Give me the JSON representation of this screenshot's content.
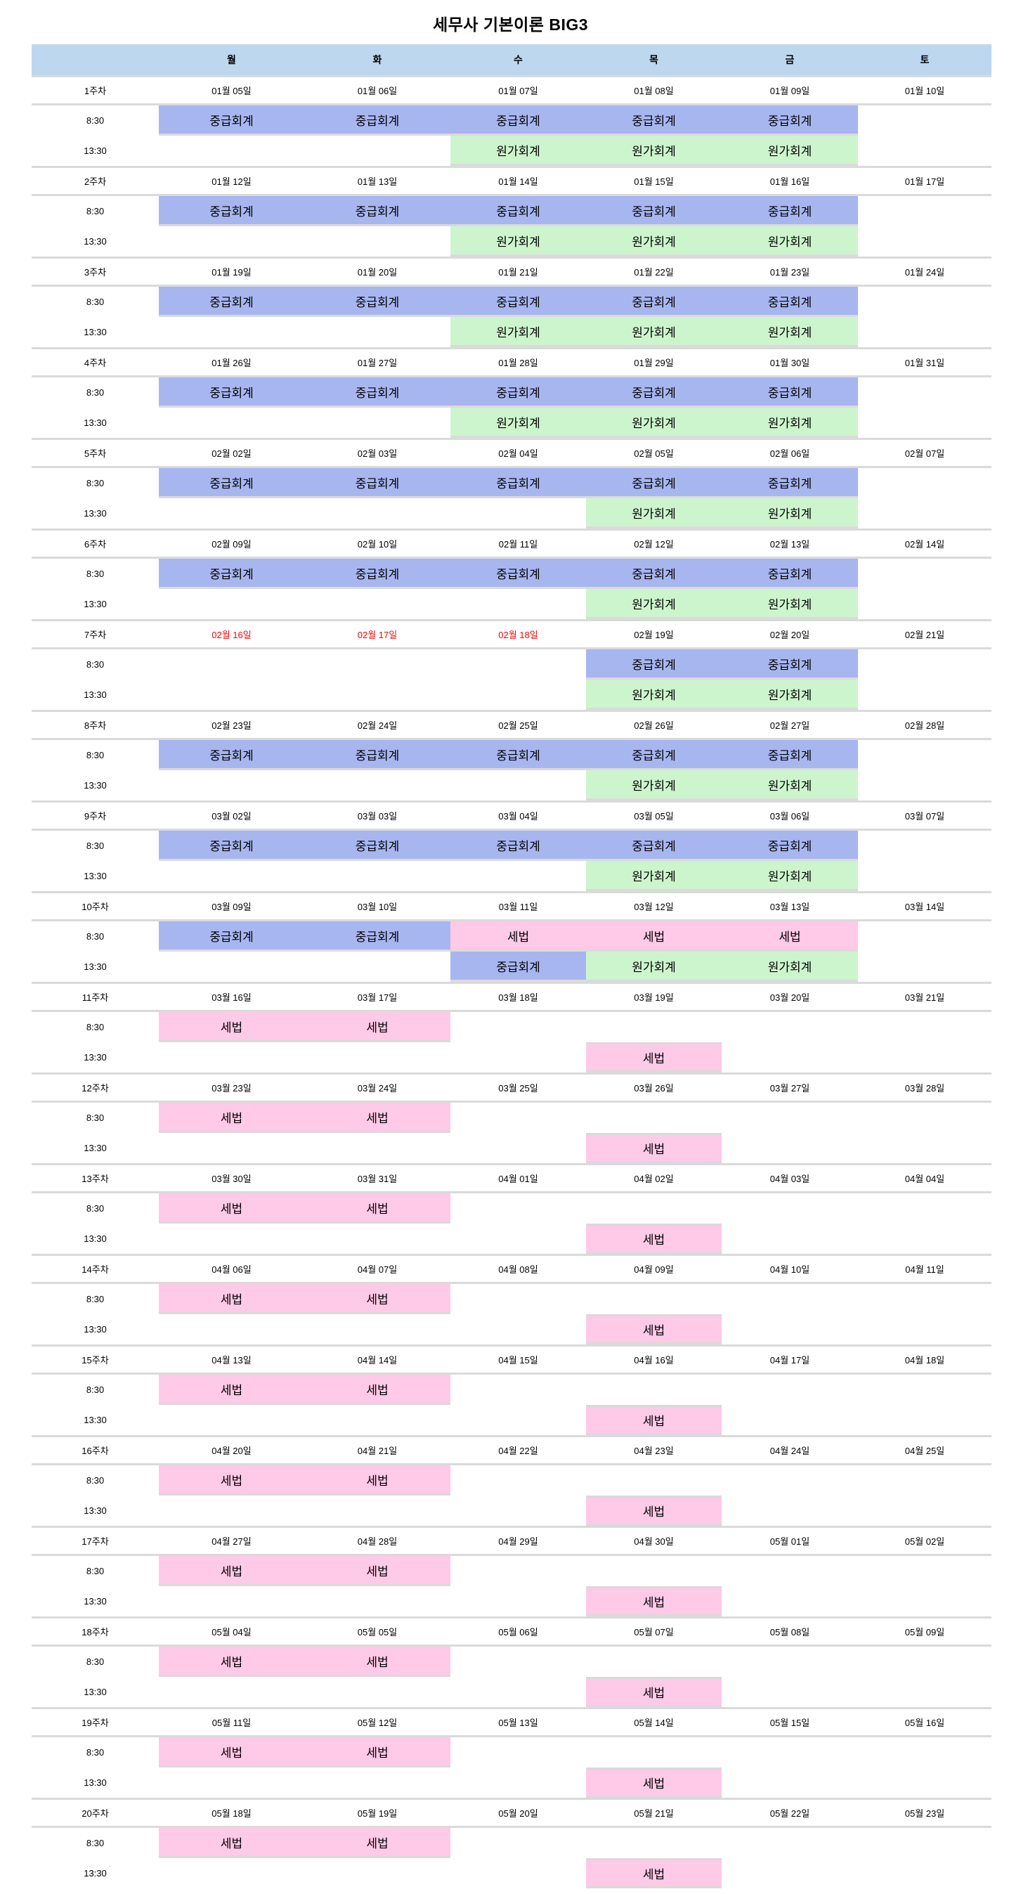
{
  "title": "세무사 기본이론 BIG3",
  "colors": {
    "header_bg": "#BDD7EE",
    "holiday_red": "#FF0000",
    "grid_line": "#DADADA"
  },
  "subject_colors": {
    "중급회계": "#A8B6F0",
    "원가회계": "#CDF5CD",
    "세법": "#FFC9E8"
  },
  "header": {
    "corner": "",
    "days": [
      "월",
      "화",
      "수",
      "목",
      "금",
      "토"
    ]
  },
  "time_labels": [
    "8:30",
    "13:30"
  ],
  "weeks": [
    {
      "label": "1주차",
      "dates": [
        "01월 05일",
        "01월 06일",
        "01월 07일",
        "01월 08일",
        "01월 09일",
        "01월 10일"
      ],
      "holiday_indices": [],
      "morning": [
        "중급회계",
        "중급회계",
        "중급회계",
        "중급회계",
        "중급회계",
        ""
      ],
      "afternoon": [
        "",
        "",
        "원가회계",
        "원가회계",
        "원가회계",
        ""
      ]
    },
    {
      "label": "2주차",
      "dates": [
        "01월 12일",
        "01월 13일",
        "01월 14일",
        "01월 15일",
        "01월 16일",
        "01월 17일"
      ],
      "holiday_indices": [],
      "morning": [
        "중급회계",
        "중급회계",
        "중급회계",
        "중급회계",
        "중급회계",
        ""
      ],
      "afternoon": [
        "",
        "",
        "원가회계",
        "원가회계",
        "원가회계",
        ""
      ]
    },
    {
      "label": "3주차",
      "dates": [
        "01월 19일",
        "01월 20일",
        "01월 21일",
        "01월 22일",
        "01월 23일",
        "01월 24일"
      ],
      "holiday_indices": [],
      "morning": [
        "중급회계",
        "중급회계",
        "중급회계",
        "중급회계",
        "중급회계",
        ""
      ],
      "afternoon": [
        "",
        "",
        "원가회계",
        "원가회계",
        "원가회계",
        ""
      ]
    },
    {
      "label": "4주차",
      "dates": [
        "01월 26일",
        "01월 27일",
        "01월 28일",
        "01월 29일",
        "01월 30일",
        "01월 31일"
      ],
      "holiday_indices": [],
      "morning": [
        "중급회계",
        "중급회계",
        "중급회계",
        "중급회계",
        "중급회계",
        ""
      ],
      "afternoon": [
        "",
        "",
        "원가회계",
        "원가회계",
        "원가회계",
        ""
      ]
    },
    {
      "label": "5주차",
      "dates": [
        "02월 02일",
        "02월 03일",
        "02월 04일",
        "02월 05일",
        "02월 06일",
        "02월 07일"
      ],
      "holiday_indices": [],
      "morning": [
        "중급회계",
        "중급회계",
        "중급회계",
        "중급회계",
        "중급회계",
        ""
      ],
      "afternoon": [
        "",
        "",
        "",
        "원가회계",
        "원가회계",
        ""
      ]
    },
    {
      "label": "6주차",
      "dates": [
        "02월 09일",
        "02월 10일",
        "02월 11일",
        "02월 12일",
        "02월 13일",
        "02월 14일"
      ],
      "holiday_indices": [],
      "morning": [
        "중급회계",
        "중급회계",
        "중급회계",
        "중급회계",
        "중급회계",
        ""
      ],
      "afternoon": [
        "",
        "",
        "",
        "원가회계",
        "원가회계",
        ""
      ]
    },
    {
      "label": "7주차",
      "dates": [
        "02월 16일",
        "02월 17일",
        "02월 18일",
        "02월 19일",
        "02월 20일",
        "02월 21일"
      ],
      "holiday_indices": [
        0,
        1,
        2
      ],
      "morning": [
        "",
        "",
        "",
        "중급회계",
        "중급회계",
        ""
      ],
      "afternoon": [
        "",
        "",
        "",
        "원가회계",
        "원가회계",
        ""
      ]
    },
    {
      "label": "8주차",
      "dates": [
        "02월 23일",
        "02월 24일",
        "02월 25일",
        "02월 26일",
        "02월 27일",
        "02월 28일"
      ],
      "holiday_indices": [],
      "morning": [
        "중급회계",
        "중급회계",
        "중급회계",
        "중급회계",
        "중급회계",
        ""
      ],
      "afternoon": [
        "",
        "",
        "",
        "원가회계",
        "원가회계",
        ""
      ]
    },
    {
      "label": "9주차",
      "dates": [
        "03월 02일",
        "03월 03일",
        "03월 04일",
        "03월 05일",
        "03월 06일",
        "03월 07일"
      ],
      "holiday_indices": [],
      "morning": [
        "중급회계",
        "중급회계",
        "중급회계",
        "중급회계",
        "중급회계",
        ""
      ],
      "afternoon": [
        "",
        "",
        "",
        "원가회계",
        "원가회계",
        ""
      ]
    },
    {
      "label": "10주차",
      "dates": [
        "03월 09일",
        "03월 10일",
        "03월 11일",
        "03월 12일",
        "03월 13일",
        "03월 14일"
      ],
      "holiday_indices": [],
      "morning": [
        "중급회계",
        "중급회계",
        "세법",
        "세법",
        "세법",
        ""
      ],
      "afternoon": [
        "",
        "",
        "중급회계",
        "원가회계",
        "원가회계",
        ""
      ]
    },
    {
      "label": "11주차",
      "dates": [
        "03월 16일",
        "03월 17일",
        "03월 18일",
        "03월 19일",
        "03월 20일",
        "03월 21일"
      ],
      "holiday_indices": [],
      "morning": [
        "세법",
        "세법",
        "",
        "",
        "",
        ""
      ],
      "afternoon": [
        "",
        "",
        "",
        "세법",
        "",
        ""
      ]
    },
    {
      "label": "12주차",
      "dates": [
        "03월 23일",
        "03월 24일",
        "03월 25일",
        "03월 26일",
        "03월 27일",
        "03월 28일"
      ],
      "holiday_indices": [],
      "morning": [
        "세법",
        "세법",
        "",
        "",
        "",
        ""
      ],
      "afternoon": [
        "",
        "",
        "",
        "세법",
        "",
        ""
      ]
    },
    {
      "label": "13주차",
      "dates": [
        "03월 30일",
        "03월 31일",
        "04월 01일",
        "04월 02일",
        "04월 03일",
        "04월 04일"
      ],
      "holiday_indices": [],
      "morning": [
        "세법",
        "세법",
        "",
        "",
        "",
        ""
      ],
      "afternoon": [
        "",
        "",
        "",
        "세법",
        "",
        ""
      ]
    },
    {
      "label": "14주차",
      "dates": [
        "04월 06일",
        "04월 07일",
        "04월 08일",
        "04월 09일",
        "04월 10일",
        "04월 11일"
      ],
      "holiday_indices": [],
      "morning": [
        "세법",
        "세법",
        "",
        "",
        "",
        ""
      ],
      "afternoon": [
        "",
        "",
        "",
        "세법",
        "",
        ""
      ]
    },
    {
      "label": "15주차",
      "dates": [
        "04월 13일",
        "04월 14일",
        "04월 15일",
        "04월 16일",
        "04월 17일",
        "04월 18일"
      ],
      "holiday_indices": [],
      "morning": [
        "세법",
        "세법",
        "",
        "",
        "",
        ""
      ],
      "afternoon": [
        "",
        "",
        "",
        "세법",
        "",
        ""
      ]
    },
    {
      "label": "16주차",
      "dates": [
        "04월 20일",
        "04월 21일",
        "04월 22일",
        "04월 23일",
        "04월 24일",
        "04월 25일"
      ],
      "holiday_indices": [],
      "morning": [
        "세법",
        "세법",
        "",
        "",
        "",
        ""
      ],
      "afternoon": [
        "",
        "",
        "",
        "세법",
        "",
        ""
      ]
    },
    {
      "label": "17주차",
      "dates": [
        "04월 27일",
        "04월 28일",
        "04월 29일",
        "04월 30일",
        "05월 01일",
        "05월 02일"
      ],
      "holiday_indices": [],
      "morning": [
        "세법",
        "세법",
        "",
        "",
        "",
        ""
      ],
      "afternoon": [
        "",
        "",
        "",
        "세법",
        "",
        ""
      ]
    },
    {
      "label": "18주차",
      "dates": [
        "05월 04일",
        "05월 05일",
        "05월 06일",
        "05월 07일",
        "05월 08일",
        "05월 09일"
      ],
      "holiday_indices": [],
      "morning": [
        "세법",
        "세법",
        "",
        "",
        "",
        ""
      ],
      "afternoon": [
        "",
        "",
        "",
        "세법",
        "",
        ""
      ]
    },
    {
      "label": "19주차",
      "dates": [
        "05월 11일",
        "05월 12일",
        "05월 13일",
        "05월 14일",
        "05월 15일",
        "05월 16일"
      ],
      "holiday_indices": [],
      "morning": [
        "세법",
        "세법",
        "",
        "",
        "",
        ""
      ],
      "afternoon": [
        "",
        "",
        "",
        "세법",
        "",
        ""
      ]
    },
    {
      "label": "20주차",
      "dates": [
        "05월 18일",
        "05월 19일",
        "05월 20일",
        "05월 21일",
        "05월 22일",
        "05월 23일"
      ],
      "holiday_indices": [],
      "morning": [
        "세법",
        "세법",
        "",
        "",
        "",
        ""
      ],
      "afternoon": [
        "",
        "",
        "",
        "세법",
        "",
        ""
      ]
    }
  ]
}
